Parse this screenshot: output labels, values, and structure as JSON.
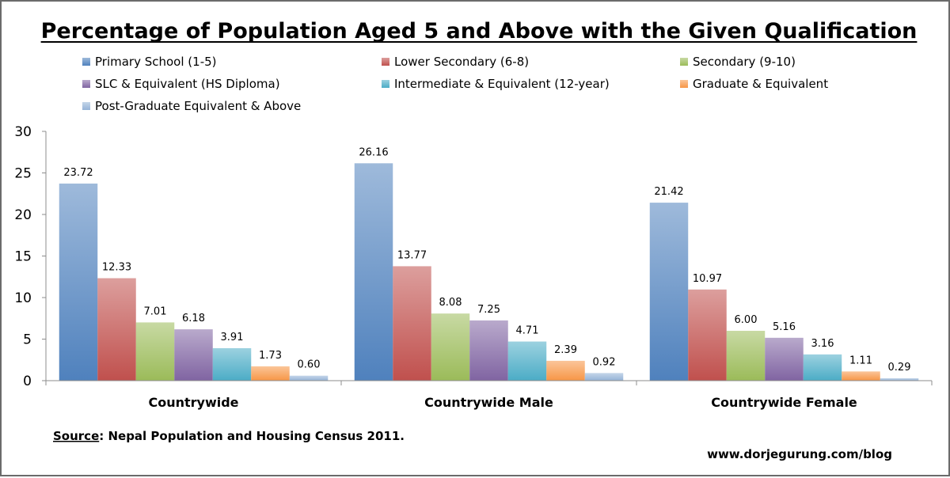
{
  "chart_data": {
    "type": "bar",
    "title": "Percentage of Population Aged 5 and Above with the Given Qualification",
    "xlabel": "",
    "ylabel": "",
    "ylim": [
      0,
      30
    ],
    "yticks": [
      "0",
      "5",
      "10",
      "15",
      "20",
      "25",
      "30"
    ],
    "grid": false,
    "legend_position": "top",
    "categories": [
      "Countrywide",
      "Countrywide Male",
      "Countrywide Female"
    ],
    "series": [
      {
        "name": "Primary School (1-5)",
        "color": "#4f81bd",
        "values": [
          23.72,
          26.16,
          21.42
        ],
        "labels": [
          "23.72",
          "26.16",
          "21.42"
        ]
      },
      {
        "name": "Lower Secondary (6-8)",
        "color": "#c0504d",
        "values": [
          12.33,
          13.77,
          10.97
        ],
        "labels": [
          "12.33",
          "13.77",
          "10.97"
        ]
      },
      {
        "name": "Secondary (9-10)",
        "color": "#9bbb59",
        "values": [
          7.01,
          8.08,
          6.0
        ],
        "labels": [
          "7.01",
          "8.08",
          "6.00"
        ]
      },
      {
        "name": "SLC & Equivalent (HS Diploma)",
        "color": "#8064a2",
        "values": [
          6.18,
          7.25,
          5.16
        ],
        "labels": [
          "6.18",
          "7.25",
          "5.16"
        ]
      },
      {
        "name": "Intermediate & Equivalent (12-year)",
        "color": "#4bacc6",
        "values": [
          3.91,
          4.71,
          3.16
        ],
        "labels": [
          "3.91",
          "4.71",
          "3.16"
        ]
      },
      {
        "name": "Graduate & Equivalent",
        "color": "#f79646",
        "values": [
          1.73,
          2.39,
          1.11
        ],
        "labels": [
          "1.73",
          "2.39",
          "1.11"
        ]
      },
      {
        "name": "Post-Graduate Equivalent & Above",
        "color": "#95b3d7",
        "values": [
          0.6,
          0.92,
          0.29
        ],
        "labels": [
          "0.60",
          "0.92",
          "0.29"
        ]
      }
    ]
  },
  "footer": {
    "source_label": "Source",
    "source_text": ": Nepal Population and Housing Census 2011.",
    "website": "www.dorjegurung.com/blog"
  }
}
